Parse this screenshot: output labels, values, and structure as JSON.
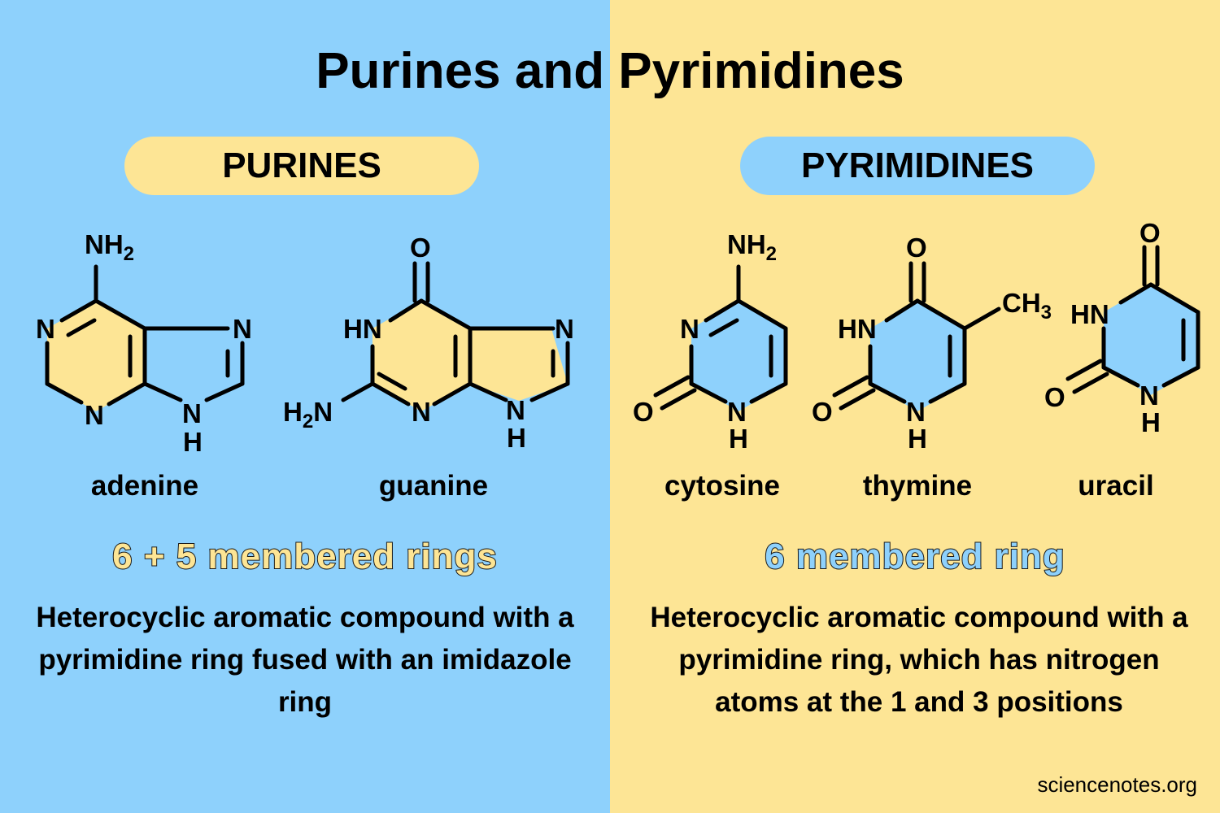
{
  "title": "Purines and Pyrimidines",
  "purines": {
    "heading": "PURINES",
    "rings": "6 + 5 membered rings",
    "description": "Heterocyclic aromatic compound with a pyrimidine ring fused with an imidazole ring",
    "molecules": [
      {
        "name": "adenine"
      },
      {
        "name": "guanine"
      }
    ]
  },
  "pyrimidines": {
    "heading": "PYRIMIDINES",
    "rings": "6 membered ring",
    "description": "Heterocyclic aromatic compound with a pyrimidine ring, which has nitrogen atoms at the 1 and 3 positions",
    "molecules": [
      {
        "name": "cytosine"
      },
      {
        "name": "thymine"
      },
      {
        "name": "uracil"
      }
    ]
  },
  "atoms": {
    "N": "N",
    "H": "H",
    "HN": "HN",
    "O": "O",
    "NH2": "NH",
    "H2N_H": "H",
    "H2N_N": "N",
    "CH3": "CH",
    "sub2": "2",
    "sub3": "3"
  },
  "credit": "sciencenotes.org",
  "colors": {
    "blue": "#8ed1fc",
    "yellow": "#fde595"
  }
}
